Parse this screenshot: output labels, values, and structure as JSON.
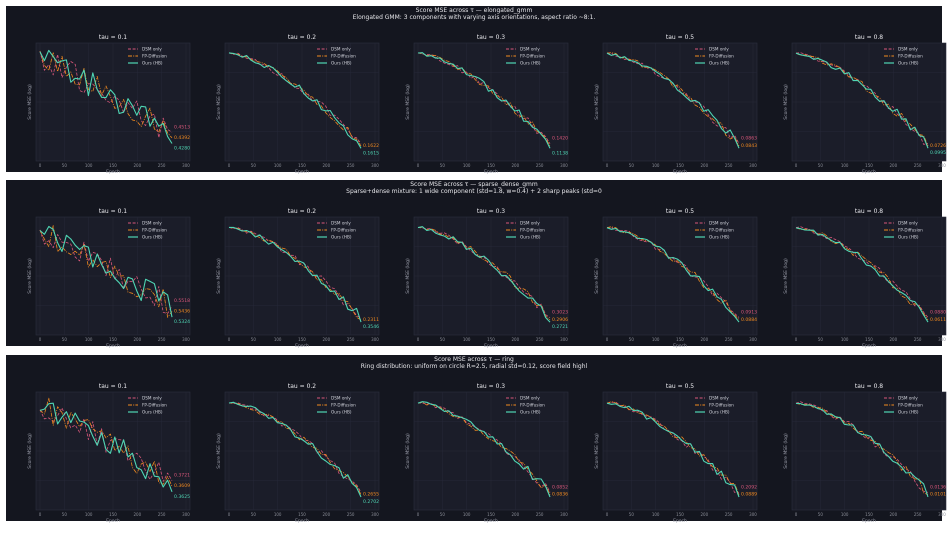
{
  "figures": [
    {
      "title": "Score MSE across τ — elongated_gmm",
      "subtitle": "Elongated GMM: 3 components with varying axis orientations, aspect ratio ~8:1."
    },
    {
      "title": "Score MSE across τ — sparse_dense_gmm",
      "subtitle": "Sparse+dense mixture: 1 wide component (std=1.8, w=0.4) + 2 sharp peaks (std=0"
    },
    {
      "title": "Score MSE across τ — ring",
      "subtitle": "Ring distribution: uniform on circle R=2.5, radial std=0.12, score field highl"
    }
  ],
  "colors": {
    "background": "#14161f",
    "plot_area": "#1b1d29",
    "dsm": "#d9577a",
    "fp": "#f28a1f",
    "hb": "#4fd6b4"
  },
  "chart_data": {
    "type": "line",
    "xlabel": "Epoch",
    "ylabel": "Score MSE (log)",
    "x_ticks": [
      0,
      50,
      100,
      150,
      200,
      250,
      300
    ],
    "xlim": [
      0,
      300
    ],
    "yscale": "log",
    "series_names": [
      "DSM only",
      "FP-Diffusion",
      "Ours (HB)"
    ],
    "legend_position": "upper right",
    "grid": true,
    "panels": [
      {
        "figure": 0,
        "title": "tau = 0.1",
        "profile": "noisy",
        "end_labels": {
          "dsm": "0.4513",
          "fp": "0.4392",
          "hb": "0.4280"
        }
      },
      {
        "figure": 0,
        "title": "tau = 0.2",
        "profile": "smooth",
        "end_labels": {
          "dsm": "",
          "fp": "0.1622",
          "hb": "0.1615"
        }
      },
      {
        "figure": 0,
        "title": "tau = 0.3",
        "profile": "smooth",
        "end_labels": {
          "dsm": "0.1420",
          "fp": "",
          "hb": "0.1138"
        }
      },
      {
        "figure": 0,
        "title": "tau = 0.5",
        "profile": "smooth",
        "end_labels": {
          "dsm": "0.0863",
          "fp": "0.0843",
          "hb": ""
        }
      },
      {
        "figure": 0,
        "title": "tau = 0.8",
        "profile": "smooth",
        "end_labels": {
          "dsm": "",
          "fp": "0.0726",
          "hb": "0.0995"
        }
      },
      {
        "figure": 1,
        "title": "tau = 0.1",
        "profile": "noisy",
        "end_labels": {
          "dsm": "0.5518",
          "fp": "0.5436",
          "hb": "0.5324"
        }
      },
      {
        "figure": 1,
        "title": "tau = 0.2",
        "profile": "smooth",
        "end_labels": {
          "dsm": "",
          "fp": "0.2311",
          "hb": "0.3546"
        }
      },
      {
        "figure": 1,
        "title": "tau = 0.3",
        "profile": "smooth",
        "end_labels": {
          "dsm": "0.3023",
          "fp": "0.2906",
          "hb": "0.2721"
        }
      },
      {
        "figure": 1,
        "title": "tau = 0.5",
        "profile": "smooth",
        "end_labels": {
          "dsm": "0.0913",
          "fp": "0.0884",
          "hb": ""
        }
      },
      {
        "figure": 1,
        "title": "tau = 0.8",
        "profile": "smooth",
        "end_labels": {
          "dsm": "0.0880",
          "fp": "0.0611",
          "hb": ""
        }
      },
      {
        "figure": 2,
        "title": "tau = 0.1",
        "profile": "noisy",
        "end_labels": {
          "dsm": "0.3721",
          "fp": "0.3609",
          "hb": "0.3625"
        }
      },
      {
        "figure": 2,
        "title": "tau = 0.2",
        "profile": "smooth",
        "end_labels": {
          "dsm": "",
          "fp": "0.2655",
          "hb": "0.2702"
        }
      },
      {
        "figure": 2,
        "title": "tau = 0.3",
        "profile": "smooth",
        "end_labels": {
          "dsm": "0.0852",
          "fp": "0.0836",
          "hb": ""
        }
      },
      {
        "figure": 2,
        "title": "tau = 0.5",
        "profile": "smooth",
        "end_labels": {
          "dsm": "0.2092",
          "fp": "0.0889",
          "hb": ""
        }
      },
      {
        "figure": 2,
        "title": "tau = 0.8",
        "profile": "smooth",
        "end_labels": {
          "dsm": "0.0136",
          "fp": "0.0101",
          "hb": ""
        }
      }
    ]
  }
}
